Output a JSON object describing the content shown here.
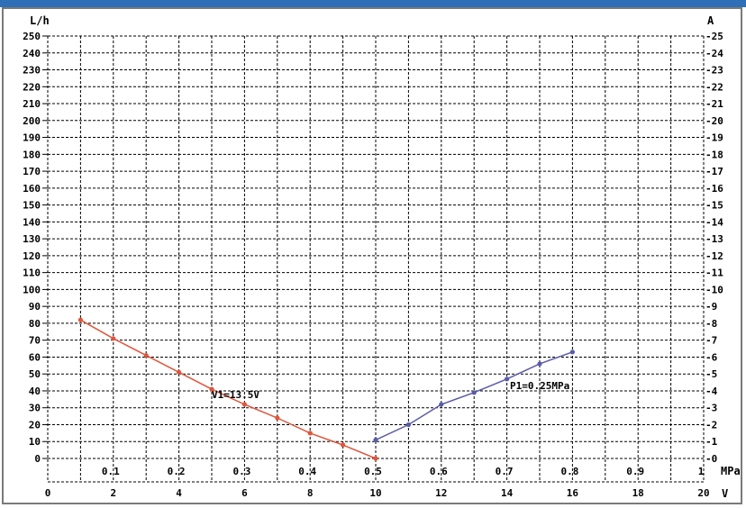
{
  "window": {
    "title_bar_color": "#2f6fb7"
  },
  "chart_data": {
    "type": "line",
    "y_left": {
      "unit": "L/h",
      "range": [
        0,
        250
      ],
      "ticks": [
        "0",
        "10",
        "20",
        "30",
        "40",
        "50",
        "60",
        "70",
        "80",
        "90",
        "100",
        "110",
        "120",
        "130",
        "140",
        "150",
        "160",
        "170",
        "180",
        "190",
        "200",
        "210",
        "220",
        "230",
        "240",
        "250"
      ]
    },
    "y_right": {
      "unit": "A",
      "range": [
        0,
        25
      ],
      "ticks": [
        "-0",
        "-1",
        "-2",
        "-3",
        "-4",
        "-5",
        "-6",
        "-7",
        "-8",
        "-9",
        "-10",
        "-11",
        "-12",
        "-13",
        "-14",
        "-15",
        "-16",
        "-17",
        "-18",
        "-19",
        "-20",
        "-21",
        "-22",
        "-23",
        "-24",
        "-25"
      ]
    },
    "x_voltage": {
      "unit": "V",
      "range": [
        0,
        20
      ],
      "ticks": [
        "0",
        "2",
        "4",
        "6",
        "8",
        "10",
        "12",
        "14",
        "16",
        "18",
        "20"
      ]
    },
    "x_pressure": {
      "unit": "MPa",
      "range": [
        0,
        1
      ],
      "ticks": [
        "0.1",
        "0.2",
        "0.3",
        "0.4",
        "0.5",
        "0.6",
        "0.7",
        "0.8",
        "0.9",
        "1"
      ]
    },
    "grid": true,
    "series": [
      {
        "name": "V1=13.5V",
        "color": "#e0553b",
        "x_axis": "pressure",
        "x": [
          0.05,
          0.1,
          0.15,
          0.2,
          0.25,
          0.3,
          0.35,
          0.4,
          0.45,
          0.5
        ],
        "y": [
          82,
          71,
          61,
          51,
          41,
          32,
          24,
          15,
          8,
          0
        ]
      },
      {
        "name": "P1=0.25MPa",
        "color": "#5a5aa8",
        "x_axis": "voltage",
        "x": [
          10,
          11,
          12,
          13,
          14,
          15,
          16
        ],
        "y": [
          11,
          20,
          32,
          39,
          47,
          56,
          63
        ]
      }
    ],
    "annotations": [
      "V1=13.5V",
      "P1=0.25MPa"
    ]
  }
}
